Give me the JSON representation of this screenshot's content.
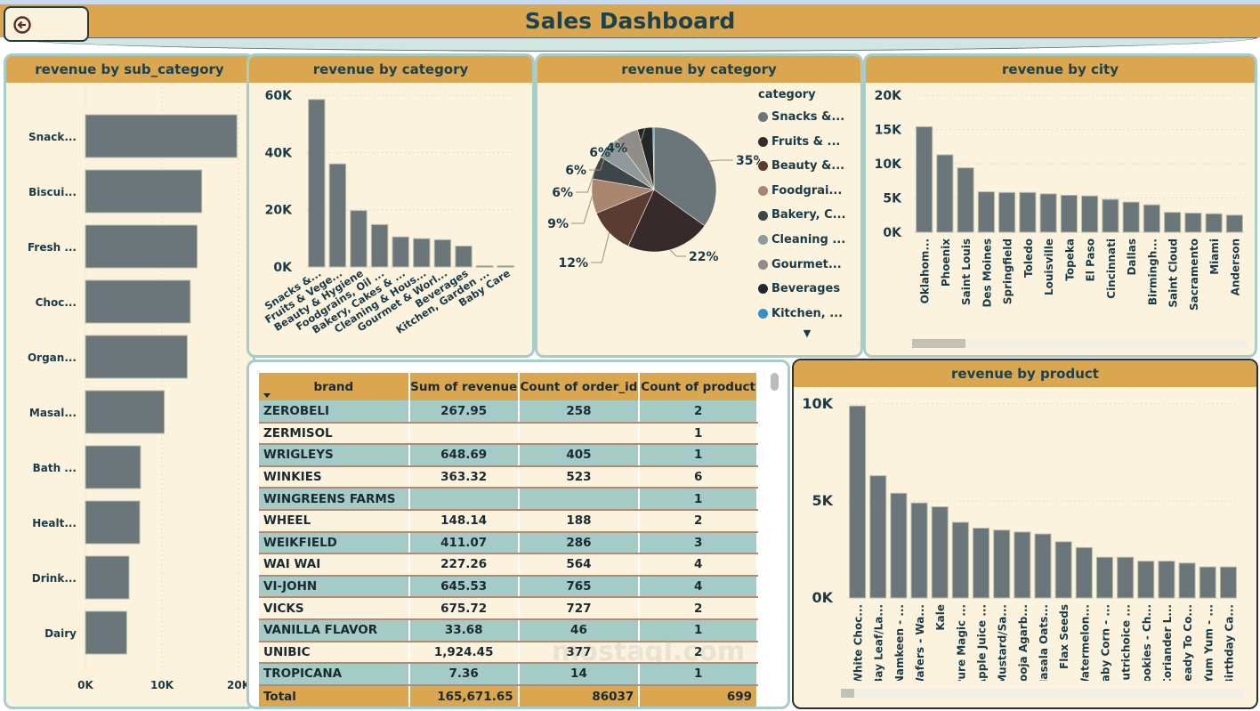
{
  "header": {
    "title": "Sales Dashboard",
    "back_button_icon": "arrow-left-circle-icon"
  },
  "colors": {
    "header_bg": "#dba650",
    "panel_bg": "#fbf3de",
    "panel_border": "#a6cdc7",
    "bar": "#6a767a",
    "title_text": "#1a4250",
    "row_alt": "#a4cbc6"
  },
  "sub_category_panel": {
    "title": "revenue by sub_category"
  },
  "category_bar_panel": {
    "title": "revenue by category"
  },
  "category_pie_panel": {
    "title": "revenue by category",
    "legend_title": "category",
    "legend_items": [
      {
        "label": "Snacks &...",
        "color": "#6a767a"
      },
      {
        "label": "Fruits & ...",
        "color": "#372a2a"
      },
      {
        "label": "Beauty &...",
        "color": "#5b3c33"
      },
      {
        "label": "Foodgrai...",
        "color": "#a88670"
      },
      {
        "label": "Bakery, C...",
        "color": "#3d4649"
      },
      {
        "label": "Cleaning ...",
        "color": "#8f999d"
      },
      {
        "label": "Gourmet...",
        "color": "#8f8c89"
      },
      {
        "label": "Beverages",
        "color": "#23272a"
      },
      {
        "label": "Kitchen, ...",
        "color": "#3a8fc4"
      }
    ],
    "more_icon": "caret-down-icon"
  },
  "city_panel": {
    "title": "revenue by city"
  },
  "product_panel": {
    "title": "revenue by product"
  },
  "brand_table": {
    "columns": [
      "brand",
      "Sum of revenue",
      "Count of order_id",
      "Count of product"
    ],
    "sort_icon": "sort-desc-icon",
    "rows": [
      [
        "ZEROBELI",
        "267.95",
        "258",
        "2"
      ],
      [
        "ZERMISOL",
        "",
        "",
        "1"
      ],
      [
        "WRIGLEYS",
        "648.69",
        "405",
        "1"
      ],
      [
        "WINKIES",
        "363.32",
        "523",
        "6"
      ],
      [
        "WINGREENS FARMS",
        "",
        "",
        "1"
      ],
      [
        "WHEEL",
        "148.14",
        "188",
        "2"
      ],
      [
        "WEIKFIELD",
        "411.07",
        "286",
        "3"
      ],
      [
        "WAI WAI",
        "227.26",
        "564",
        "4"
      ],
      [
        "VI-JOHN",
        "645.53",
        "765",
        "4"
      ],
      [
        "VICKS",
        "675.72",
        "727",
        "2"
      ],
      [
        "VANILLA FLAVOR",
        "33.68",
        "46",
        "1"
      ],
      [
        "UNIBIC",
        "1,924.45",
        "377",
        "2"
      ],
      [
        "TROPICANA",
        "7.36",
        "14",
        "1"
      ]
    ],
    "total": [
      "Total",
      "165,671.65",
      "86037",
      "699"
    ]
  },
  "watermark": "mostaql.com",
  "chart_data": [
    {
      "id": "sub_category",
      "type": "bar",
      "orientation": "horizontal",
      "title": "revenue by sub_category",
      "categories": [
        "Snack...",
        "Biscui...",
        "Fresh ...",
        "Choc...",
        "Organ...",
        "Masal...",
        "Bath ...",
        "Healt...",
        "Drink...",
        "Dairy"
      ],
      "values": [
        19800,
        15200,
        14600,
        13700,
        13300,
        10300,
        7200,
        7100,
        5700,
        5400
      ],
      "xticks": [
        "0K",
        "10K",
        "20K"
      ],
      "xlim": [
        0,
        20000
      ],
      "grid": true
    },
    {
      "id": "category_bar",
      "type": "bar",
      "title": "revenue by category",
      "categories": [
        "Snacks &...",
        "Fruits & Vege...",
        "Beauty & Hygiene",
        "Foodgrains, Oil ...",
        "Bakery, Cakes & ...",
        "Cleaning & Hous...",
        "Gourmet & Worl...",
        "Beverages",
        "Kitchen, Garden ...",
        "Baby Care"
      ],
      "values": [
        58500,
        36000,
        19700,
        14800,
        10500,
        9900,
        9500,
        7300,
        400,
        400
      ],
      "yticks": [
        "0K",
        "20K",
        "40K",
        "60K"
      ],
      "ylim": [
        0,
        60000
      ],
      "grid": true
    },
    {
      "id": "category_pie",
      "type": "pie",
      "title": "revenue by category",
      "labels": [
        "Snacks &...",
        "Fruits & ...",
        "Beauty &...",
        "Foodgrai...",
        "Bakery, C...",
        "Cleaning ...",
        "Gourmet...",
        "Beverages",
        "Kitchen, ..."
      ],
      "values": [
        35,
        22,
        12,
        9,
        6,
        6,
        6,
        4,
        0.3
      ],
      "data_labels": [
        "35%",
        "22%",
        "12%",
        "9%",
        "6%",
        "6%",
        "6%",
        "4%",
        ""
      ],
      "legend": "right"
    },
    {
      "id": "city",
      "type": "bar",
      "title": "revenue by city",
      "categories": [
        "Oklahom...",
        "Phoenix",
        "Saint Louis",
        "Des Moines",
        "Springfield",
        "Toledo",
        "Louisville",
        "Topeka",
        "El Paso",
        "Cincinnati",
        "Dallas",
        "Birmingh...",
        "Saint Cloud",
        "Sacramento",
        "Miami",
        "Anderson"
      ],
      "values": [
        15400,
        11300,
        9400,
        5900,
        5800,
        5800,
        5600,
        5400,
        5300,
        4800,
        4400,
        4000,
        2900,
        2800,
        2700,
        2500
      ],
      "yticks": [
        "0K",
        "5K",
        "10K",
        "15K",
        "20K"
      ],
      "ylim": [
        0,
        20000
      ],
      "grid": true
    },
    {
      "id": "product",
      "type": "bar",
      "title": "revenue by product",
      "categories": [
        "White Choc...",
        "Bay Leaf/La...",
        "Namkeen - ...",
        "Wafers - Wa...",
        "Kale",
        "Pure Magic ...",
        "Apple Juice ...",
        "Mustard/Sa...",
        "Pooja Agarb...",
        "Masala Oats...",
        "Flax Seeds",
        "Watermelon...",
        "Baby Corn - ...",
        "Nutrichoice ...",
        "Cookies - Ch...",
        "Coriander L...",
        "Ready To Co...",
        "Yum Yum - ...",
        "Birthday Ca..."
      ],
      "values": [
        9900,
        6300,
        5400,
        4900,
        4700,
        3900,
        3600,
        3500,
        3400,
        3300,
        2900,
        2600,
        2100,
        2100,
        1900,
        1900,
        1800,
        1600,
        1600
      ],
      "yticks": [
        "0K",
        "5K",
        "10K"
      ],
      "ylim": [
        0,
        10000
      ],
      "grid": true
    }
  ]
}
